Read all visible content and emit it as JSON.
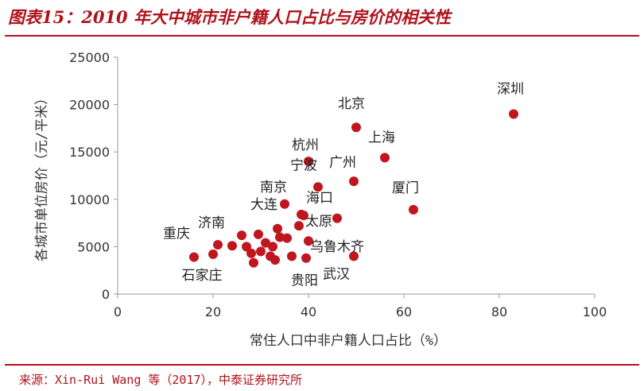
{
  "title": "图表15：2010 年大中城市非户籍人口占比与房价的相关性",
  "source": "来源：Xin-Rui Wang 等（2017），中泰证券研究所",
  "colors": {
    "accent": "#b0121b",
    "point": "#c0161f",
    "axis": "#999999"
  },
  "chart_data": {
    "type": "scatter",
    "title": "",
    "xlabel": "常住人口中非户籍人口占比（%）",
    "ylabel": "各城市单位房价（元/平米）",
    "xlim": [
      0,
      100
    ],
    "ylim": [
      0,
      25000
    ],
    "xticks": [
      0,
      20,
      40,
      60,
      80,
      100
    ],
    "yticks": [
      0,
      5000,
      10000,
      15000,
      20000,
      25000
    ],
    "grid": false,
    "points": [
      {
        "x": 83,
        "y": 19000,
        "label": "深圳"
      },
      {
        "x": 50,
        "y": 17600,
        "label": "北京"
      },
      {
        "x": 56,
        "y": 14400,
        "label": "上海"
      },
      {
        "x": 40,
        "y": 14000,
        "label": "杭州"
      },
      {
        "x": 49.5,
        "y": 11900,
        "label": "广州"
      },
      {
        "x": 42,
        "y": 11300,
        "label": "宁波"
      },
      {
        "x": 62,
        "y": 8900,
        "label": "厦门"
      },
      {
        "x": 35,
        "y": 9500,
        "label": "南京"
      },
      {
        "x": 46,
        "y": 8000,
        "label": "海口"
      },
      {
        "x": 39,
        "y": 8300,
        "label": "大连"
      },
      {
        "x": 21,
        "y": 5200,
        "label": "济南"
      },
      {
        "x": 38,
        "y": 7200,
        "label": "太原"
      },
      {
        "x": 40,
        "y": 5600,
        "label": "乌鲁木齐"
      },
      {
        "x": 49.5,
        "y": 4000,
        "label": "武汉"
      },
      {
        "x": 16,
        "y": 3900,
        "label": "重庆"
      },
      {
        "x": 20,
        "y": 4200,
        "label": "石家庄"
      },
      {
        "x": 39.5,
        "y": 3800,
        "label": "贵阳"
      },
      {
        "x": 24,
        "y": 5100,
        "label": ""
      },
      {
        "x": 26,
        "y": 6200,
        "label": ""
      },
      {
        "x": 27,
        "y": 5000,
        "label": ""
      },
      {
        "x": 28,
        "y": 4300,
        "label": ""
      },
      {
        "x": 28.5,
        "y": 3300,
        "label": ""
      },
      {
        "x": 29.5,
        "y": 6300,
        "label": ""
      },
      {
        "x": 30,
        "y": 4500,
        "label": ""
      },
      {
        "x": 31,
        "y": 5400,
        "label": ""
      },
      {
        "x": 32,
        "y": 4000,
        "label": ""
      },
      {
        "x": 32.5,
        "y": 5000,
        "label": ""
      },
      {
        "x": 33,
        "y": 3600,
        "label": ""
      },
      {
        "x": 33.5,
        "y": 6900,
        "label": ""
      },
      {
        "x": 34,
        "y": 6000,
        "label": ""
      },
      {
        "x": 35.5,
        "y": 5900,
        "label": ""
      },
      {
        "x": 36.5,
        "y": 4000,
        "label": ""
      },
      {
        "x": 38.5,
        "y": 8400,
        "label": ""
      }
    ]
  }
}
